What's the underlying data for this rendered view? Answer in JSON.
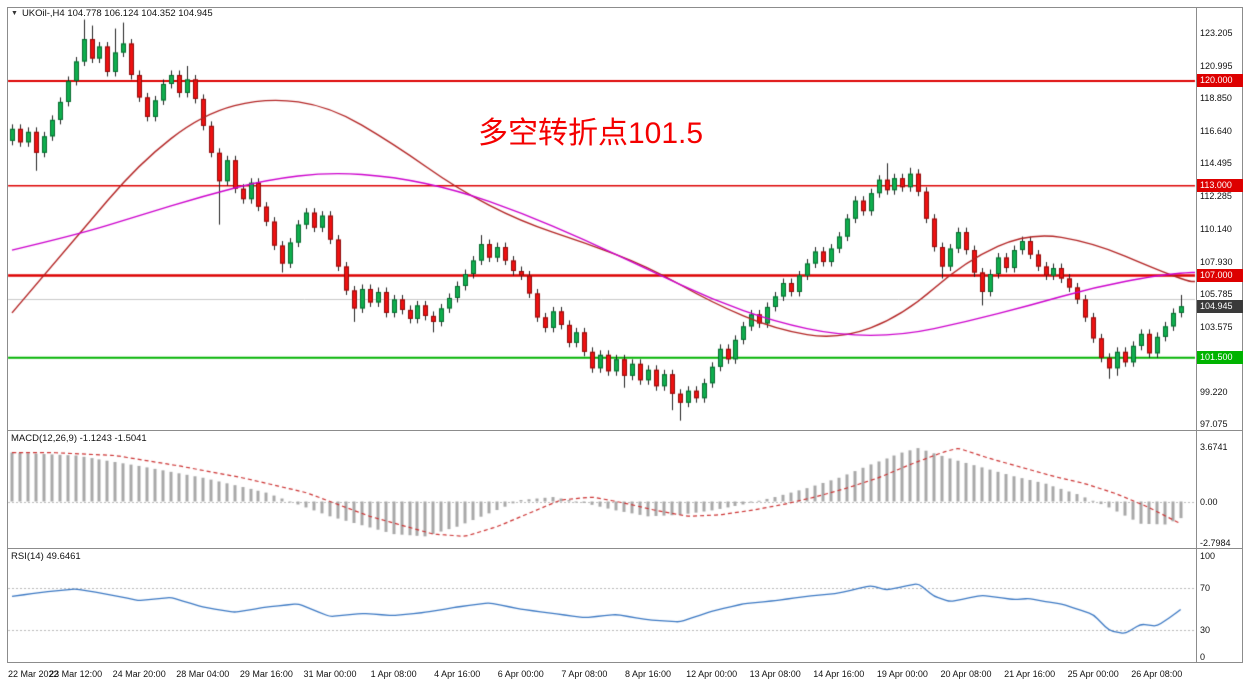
{
  "header": {
    "collapse_icon": "▼",
    "symbol_info": "UKOil-,H4 104.778 106.124 104.352 104.945",
    "ohlc": {
      "open": "104.778",
      "high": "106.124",
      "low": "104.352",
      "close": "104.945"
    }
  },
  "annotation": {
    "text": "多空转折点101.5",
    "color": "#f40000"
  },
  "chart_data": [
    {
      "type": "candlestick",
      "title": "UKOil- H4",
      "x_labels": [
        "22 Mar 2022",
        "23 Mar 12:00",
        "24 Mar 20:00",
        "28 Mar 04:00",
        "29 Mar 16:00",
        "31 Mar 00:00",
        "1 Apr 08:00",
        "4 Apr 16:00",
        "6 Apr 00:00",
        "7 Apr 08:00",
        "8 Apr 16:00",
        "12 Apr 00:00",
        "13 Apr 08:00",
        "14 Apr 16:00",
        "19 Apr 00:00",
        "20 Apr 08:00",
        "21 Apr 16:00",
        "25 Apr 00:00",
        "26 Apr 08:00"
      ],
      "candles_per_label": 8,
      "y_ticks": [
        "123.205",
        "120.995",
        "118.850",
        "116.640",
        "114.495",
        "112.285",
        "110.140",
        "107.930",
        "105.785",
        "103.575",
        "101.430",
        "99.220",
        "97.075"
      ],
      "ylim": [
        96.5,
        124.5
      ],
      "first_open": 116.0,
      "default_wick": 0.3,
      "closes": [
        116.8,
        115.9,
        116.6,
        115.2,
        116.3,
        117.4,
        118.6,
        120.0,
        121.3,
        122.8,
        121.5,
        122.3,
        120.6,
        121.9,
        122.5,
        120.4,
        118.9,
        117.6,
        118.7,
        119.8,
        120.4,
        119.2,
        120.1,
        118.8,
        117.0,
        115.2,
        113.3,
        114.7,
        112.8,
        112.1,
        113.2,
        111.6,
        110.6,
        109.0,
        107.8,
        109.2,
        110.4,
        111.2,
        110.2,
        111.0,
        109.4,
        107.6,
        106.0,
        104.8,
        106.1,
        105.2,
        105.9,
        104.5,
        105.4,
        104.7,
        104.1,
        105.0,
        104.3,
        103.9,
        104.8,
        105.5,
        106.3,
        107.1,
        108.0,
        109.1,
        108.2,
        108.9,
        108.0,
        107.3,
        107.0,
        105.8,
        104.2,
        103.5,
        104.6,
        103.7,
        102.5,
        103.2,
        101.9,
        100.8,
        101.7,
        100.6,
        101.4,
        100.3,
        101.1,
        100.0,
        100.7,
        99.6,
        100.4,
        99.1,
        98.5,
        99.3,
        98.8,
        99.8,
        100.9,
        102.1,
        101.4,
        102.7,
        103.6,
        104.4,
        103.8,
        104.9,
        105.6,
        106.5,
        105.9,
        107.0,
        107.8,
        108.6,
        107.9,
        108.8,
        109.6,
        110.8,
        112.0,
        111.3,
        112.5,
        113.4,
        112.7,
        113.5,
        112.9,
        113.8,
        112.6,
        110.8,
        108.9,
        107.6,
        108.8,
        109.9,
        108.7,
        107.2,
        105.9,
        107.1,
        108.2,
        107.5,
        108.7,
        109.3,
        108.4,
        107.6,
        107.0,
        107.5,
        106.8,
        106.2,
        105.4,
        104.2,
        102.8,
        101.5,
        100.8,
        101.9,
        101.2,
        102.3,
        103.1,
        101.8,
        102.9,
        103.6,
        104.5,
        104.945
      ],
      "high_overrides": {
        "9": 124.1,
        "10": 123.7,
        "13": 123.5,
        "14": 123.9,
        "22": 121.0,
        "59": 109.7,
        "110": 114.5,
        "113": 114.2,
        "147": 105.7
      },
      "low_overrides": {
        "3": 114.0,
        "26": 110.4,
        "34": 107.2,
        "43": 103.9,
        "53": 103.2,
        "77": 99.5,
        "83": 98.0,
        "84": 97.3,
        "117": 106.8,
        "122": 105.0,
        "138": 100.1,
        "139": 100.3
      },
      "up_color": "#0fae4e",
      "down_color": "#ee1111",
      "wick_color": "#222222",
      "overlays": {
        "ma_slow": {
          "name": "ma-magenta",
          "color": "#cc00cc",
          "values": [
            108.7,
            109.7,
            111.0,
            112.3,
            113.4,
            113.9,
            113.6,
            112.7,
            111.2,
            109.4,
            107.4,
            105.4,
            103.9,
            103.0,
            103.0,
            103.9,
            105.0,
            106.2,
            107.0,
            107.2
          ]
        },
        "ma_fast": {
          "name": "ma-darkred",
          "color": "#b22222",
          "values": [
            104.5,
            109.5,
            114.5,
            117.8,
            118.9,
            118.3,
            115.8,
            112.8,
            110.6,
            109.2,
            107.6,
            105.2,
            103.4,
            102.7,
            104.3,
            108.0,
            109.9,
            109.2,
            107.4,
            106.6
          ]
        }
      },
      "levels": [
        {
          "price": 120.0,
          "label": "120.000",
          "color": "#dd0000",
          "width": 2
        },
        {
          "price": 113.0,
          "label": "113.000",
          "color": "#dd0000",
          "width": 1.5
        },
        {
          "price": 107.0,
          "label": "107.000",
          "color": "#dd0000",
          "width": 2.5
        },
        {
          "price": 101.5,
          "label": "101.500",
          "color": "#00b300",
          "width": 2
        }
      ],
      "current": {
        "price": 104.945,
        "label": "104.945",
        "color": "#3a3a3a"
      },
      "bid_line": {
        "price": 105.45,
        "color": "#c8c8c8"
      }
    },
    {
      "type": "macd_histogram",
      "label": "MACD(12,26,9) -1.1243 -1.5041",
      "macd_value": -1.1243,
      "signal_value": -1.5041,
      "y_ticks": [
        "3.6741",
        "0.00",
        "-2.7984"
      ],
      "hist_color": "#a8a8a8",
      "signal_color": "#cc3333",
      "signal_lag": 5,
      "anchors": [
        [
          0,
          3.3
        ],
        [
          8,
          3.1
        ],
        [
          16,
          2.4
        ],
        [
          24,
          1.6
        ],
        [
          32,
          0.6
        ],
        [
          36,
          -0.2
        ],
        [
          40,
          -1.0
        ],
        [
          44,
          -1.6
        ],
        [
          48,
          -2.2
        ],
        [
          52,
          -2.35
        ],
        [
          56,
          -1.7
        ],
        [
          60,
          -0.8
        ],
        [
          64,
          0.1
        ],
        [
          68,
          0.3
        ],
        [
          72,
          -0.1
        ],
        [
          76,
          -0.6
        ],
        [
          80,
          -1.0
        ],
        [
          84,
          -0.9
        ],
        [
          88,
          -0.6
        ],
        [
          92,
          -0.2
        ],
        [
          96,
          0.3
        ],
        [
          100,
          0.9
        ],
        [
          104,
          1.6
        ],
        [
          108,
          2.5
        ],
        [
          112,
          3.3
        ],
        [
          114,
          3.6
        ],
        [
          118,
          2.9
        ],
        [
          122,
          2.3
        ],
        [
          126,
          1.7
        ],
        [
          130,
          1.2
        ],
        [
          134,
          0.5
        ],
        [
          138,
          -0.4
        ],
        [
          142,
          -1.5
        ],
        [
          145,
          -1.55
        ],
        [
          147,
          -1.12
        ]
      ]
    },
    {
      "type": "line",
      "label": "RSI(14) 49.6461",
      "rsi_value": 49.6461,
      "y_ticks": [
        "100",
        "70",
        "30",
        "0"
      ],
      "level_lines": [
        70,
        30
      ],
      "line_color": "#3b78c3",
      "level_color": "#b8b8b8",
      "anchors": [
        [
          0,
          62
        ],
        [
          4,
          66
        ],
        [
          8,
          69
        ],
        [
          12,
          64
        ],
        [
          16,
          58
        ],
        [
          20,
          61
        ],
        [
          24,
          52
        ],
        [
          28,
          47
        ],
        [
          32,
          52
        ],
        [
          36,
          55
        ],
        [
          40,
          43
        ],
        [
          44,
          46
        ],
        [
          48,
          44
        ],
        [
          52,
          47
        ],
        [
          56,
          52
        ],
        [
          60,
          56
        ],
        [
          64,
          50
        ],
        [
          68,
          46
        ],
        [
          72,
          42
        ],
        [
          76,
          45
        ],
        [
          80,
          40
        ],
        [
          84,
          38
        ],
        [
          88,
          48
        ],
        [
          92,
          55
        ],
        [
          96,
          58
        ],
        [
          100,
          62
        ],
        [
          104,
          65
        ],
        [
          108,
          72
        ],
        [
          110,
          68
        ],
        [
          112,
          71
        ],
        [
          114,
          74
        ],
        [
          116,
          62
        ],
        [
          118,
          57
        ],
        [
          120,
          60
        ],
        [
          122,
          63
        ],
        [
          124,
          61
        ],
        [
          126,
          59
        ],
        [
          128,
          60
        ],
        [
          130,
          57
        ],
        [
          132,
          55
        ],
        [
          134,
          50
        ],
        [
          136,
          45
        ],
        [
          138,
          30
        ],
        [
          140,
          27
        ],
        [
          142,
          36
        ],
        [
          144,
          34
        ],
        [
          146,
          44
        ],
        [
          147,
          49.6
        ]
      ]
    }
  ]
}
